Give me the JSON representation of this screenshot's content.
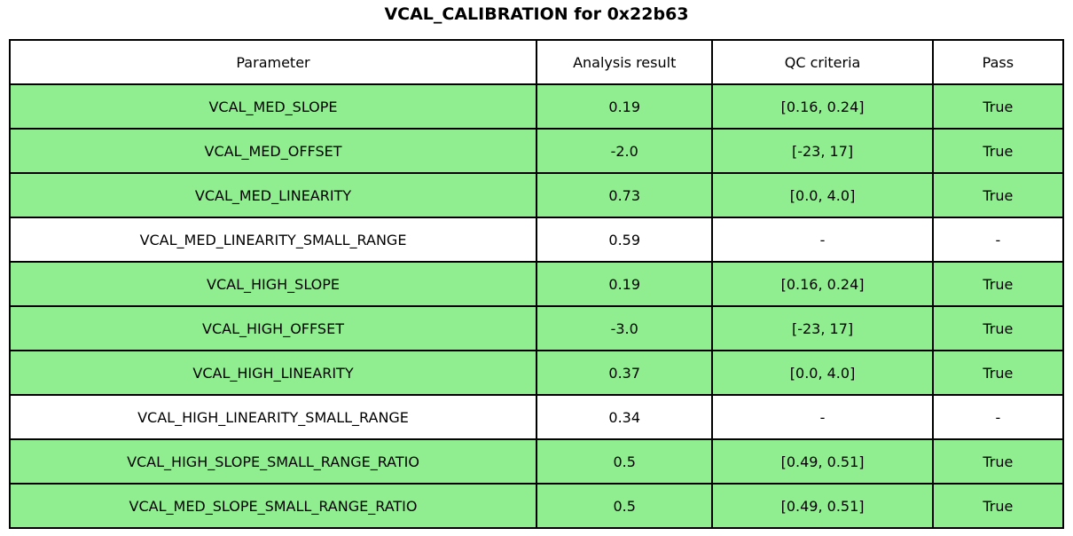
{
  "chart_data": {
    "type": "table",
    "title": "VCAL_CALIBRATION for 0x22b63",
    "columns": [
      "Parameter",
      "Analysis result",
      "QC criteria",
      "Pass"
    ],
    "rows": [
      [
        "VCAL_MED_SLOPE",
        "0.19",
        "[0.16, 0.24]",
        "True"
      ],
      [
        "VCAL_MED_OFFSET",
        "-2.0",
        "[-23, 17]",
        "True"
      ],
      [
        "VCAL_MED_LINEARITY",
        "0.73",
        "[0.0, 4.0]",
        "True"
      ],
      [
        "VCAL_MED_LINEARITY_SMALL_RANGE",
        "0.59",
        "-",
        "-"
      ],
      [
        "VCAL_HIGH_SLOPE",
        "0.19",
        "[0.16, 0.24]",
        "True"
      ],
      [
        "VCAL_HIGH_OFFSET",
        "-3.0",
        "[-23, 17]",
        "True"
      ],
      [
        "VCAL_HIGH_LINEARITY",
        "0.37",
        "[0.0, 4.0]",
        "True"
      ],
      [
        "VCAL_HIGH_LINEARITY_SMALL_RANGE",
        "0.34",
        "-",
        "-"
      ],
      [
        "VCAL_HIGH_SLOPE_SMALL_RANGE_RATIO",
        "0.5",
        "[0.49, 0.51]",
        "True"
      ],
      [
        "VCAL_MED_SLOPE_SMALL_RANGE_RATIO",
        "0.5",
        "[0.49, 0.51]",
        "True"
      ]
    ],
    "row_highlight_green": [
      true,
      true,
      true,
      false,
      true,
      true,
      true,
      false,
      true,
      true
    ],
    "layout": {
      "grid": "on",
      "header_background": "#FFFFFF"
    }
  },
  "colors": {
    "pass_green": "#90EE90",
    "row_white": "#FFFFFF",
    "border": "#000000",
    "text": "#000000",
    "background": "#FFFFFF"
  }
}
